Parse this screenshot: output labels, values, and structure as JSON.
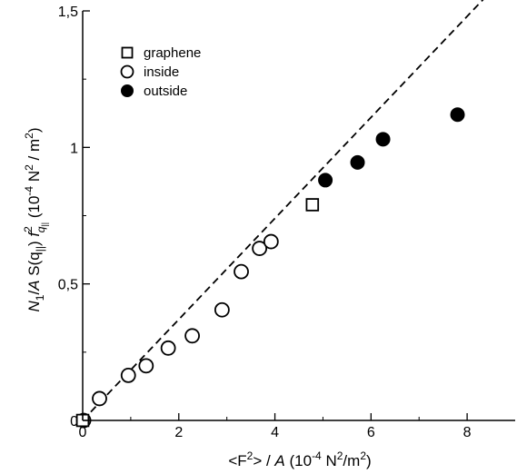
{
  "chart_data": {
    "type": "scatter",
    "xlim": [
      0,
      9
    ],
    "ylim": [
      0,
      1.5
    ],
    "x_ticks": [
      {
        "value": 0,
        "label": "0"
      },
      {
        "value": 2,
        "label": "2"
      },
      {
        "value": 4,
        "label": "4"
      },
      {
        "value": 6,
        "label": "6"
      },
      {
        "value": 8,
        "label": "8"
      }
    ],
    "y_ticks": [
      {
        "value": 0,
        "label": "0"
      },
      {
        "value": 0.5,
        "label": "0,5"
      },
      {
        "value": 1,
        "label": "1"
      },
      {
        "value": 1.5,
        "label": "1,5"
      }
    ],
    "xlabel": {
      "before": "<F",
      "sup": "2",
      "middle": "> / ",
      "italic": "A",
      "unit_open": " (10",
      "unit_exp": "-4",
      "unit_base": " N",
      "unit_sup": "2",
      "unit_close": "/m",
      "unit_sup2": "2",
      "unit_end": ")"
    },
    "ylabel": {
      "n": "N",
      "n_sub": "1",
      "mid": "/",
      "a": "A",
      "s": " S(q",
      "s_sub": "||",
      "s_close": ") ",
      "f": "f",
      "f_sup": "2",
      "f_sub": "q",
      "f_subsub": "||",
      "unit_open": "  (10",
      "unit_exp": "-4",
      "unit_base": "  N",
      "unit_sup": "2",
      "unit_mid": " / m",
      "unit_sup2": "2",
      "unit_end": ")"
    },
    "legend_position": "top-left",
    "fit_line": {
      "style": "dashed",
      "x": [
        0,
        9
      ],
      "y": [
        0,
        1.665
      ]
    },
    "series": [
      {
        "name": "graphene",
        "marker": "open-square",
        "points": [
          [
            0,
            0
          ],
          [
            4.78,
            0.79
          ]
        ]
      },
      {
        "name": "inside",
        "marker": "open-circle",
        "points": [
          [
            0.02,
            0
          ],
          [
            0.35,
            0.08
          ],
          [
            0.95,
            0.165
          ],
          [
            1.32,
            0.2
          ],
          [
            1.78,
            0.265
          ],
          [
            2.28,
            0.31
          ],
          [
            2.9,
            0.405
          ],
          [
            3.3,
            0.545
          ],
          [
            3.68,
            0.63
          ],
          [
            3.92,
            0.655
          ]
        ]
      },
      {
        "name": "outside",
        "marker": "filled-circle",
        "points": [
          [
            5.05,
            0.88
          ],
          [
            5.72,
            0.945
          ],
          [
            6.25,
            1.03
          ],
          [
            7.8,
            1.12
          ]
        ]
      }
    ]
  }
}
